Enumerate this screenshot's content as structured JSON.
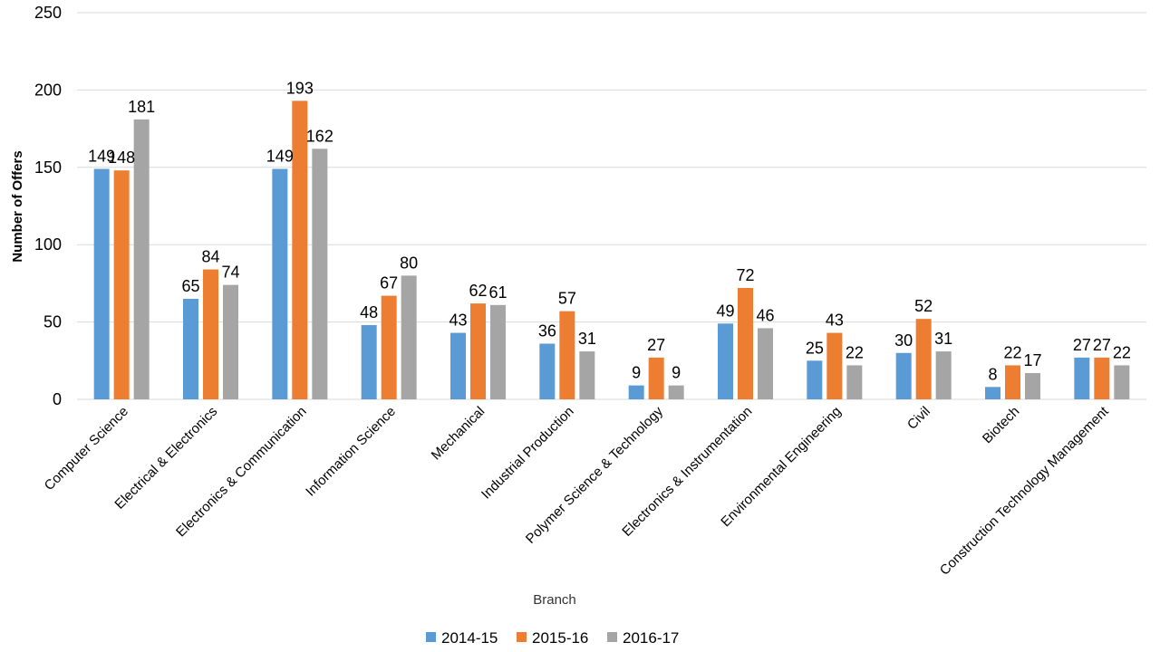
{
  "chart_data": {
    "type": "bar",
    "title": "",
    "xlabel": "Branch",
    "ylabel": "Number of Offers",
    "ylim": [
      0,
      250
    ],
    "yticks": [
      "0",
      "50",
      "100",
      "150",
      "200",
      "250"
    ],
    "grid": true,
    "legend_position": "bottom",
    "categories": [
      "Computer Science",
      "Electrical & Electronics",
      "Electronics & Communication",
      "Information Science",
      "Mechanical",
      "Industrial Production",
      "Polymer Science & Technology",
      "Electronics & Instrumentation",
      "Environmental Engineering",
      "Civil",
      "Biotech",
      "Construction Technology Management"
    ],
    "series": [
      {
        "name": "2014-15",
        "color": "#5B9BD5",
        "values": [
          149,
          65,
          149,
          48,
          43,
          36,
          9,
          49,
          25,
          30,
          8,
          27
        ]
      },
      {
        "name": "2015-16",
        "color": "#ED7D31",
        "values": [
          148,
          84,
          193,
          67,
          62,
          57,
          27,
          72,
          43,
          52,
          22,
          27
        ]
      },
      {
        "name": "2016-17",
        "color": "#A5A5A5",
        "values": [
          181,
          74,
          162,
          80,
          61,
          31,
          9,
          46,
          22,
          31,
          17,
          22
        ]
      }
    ]
  }
}
